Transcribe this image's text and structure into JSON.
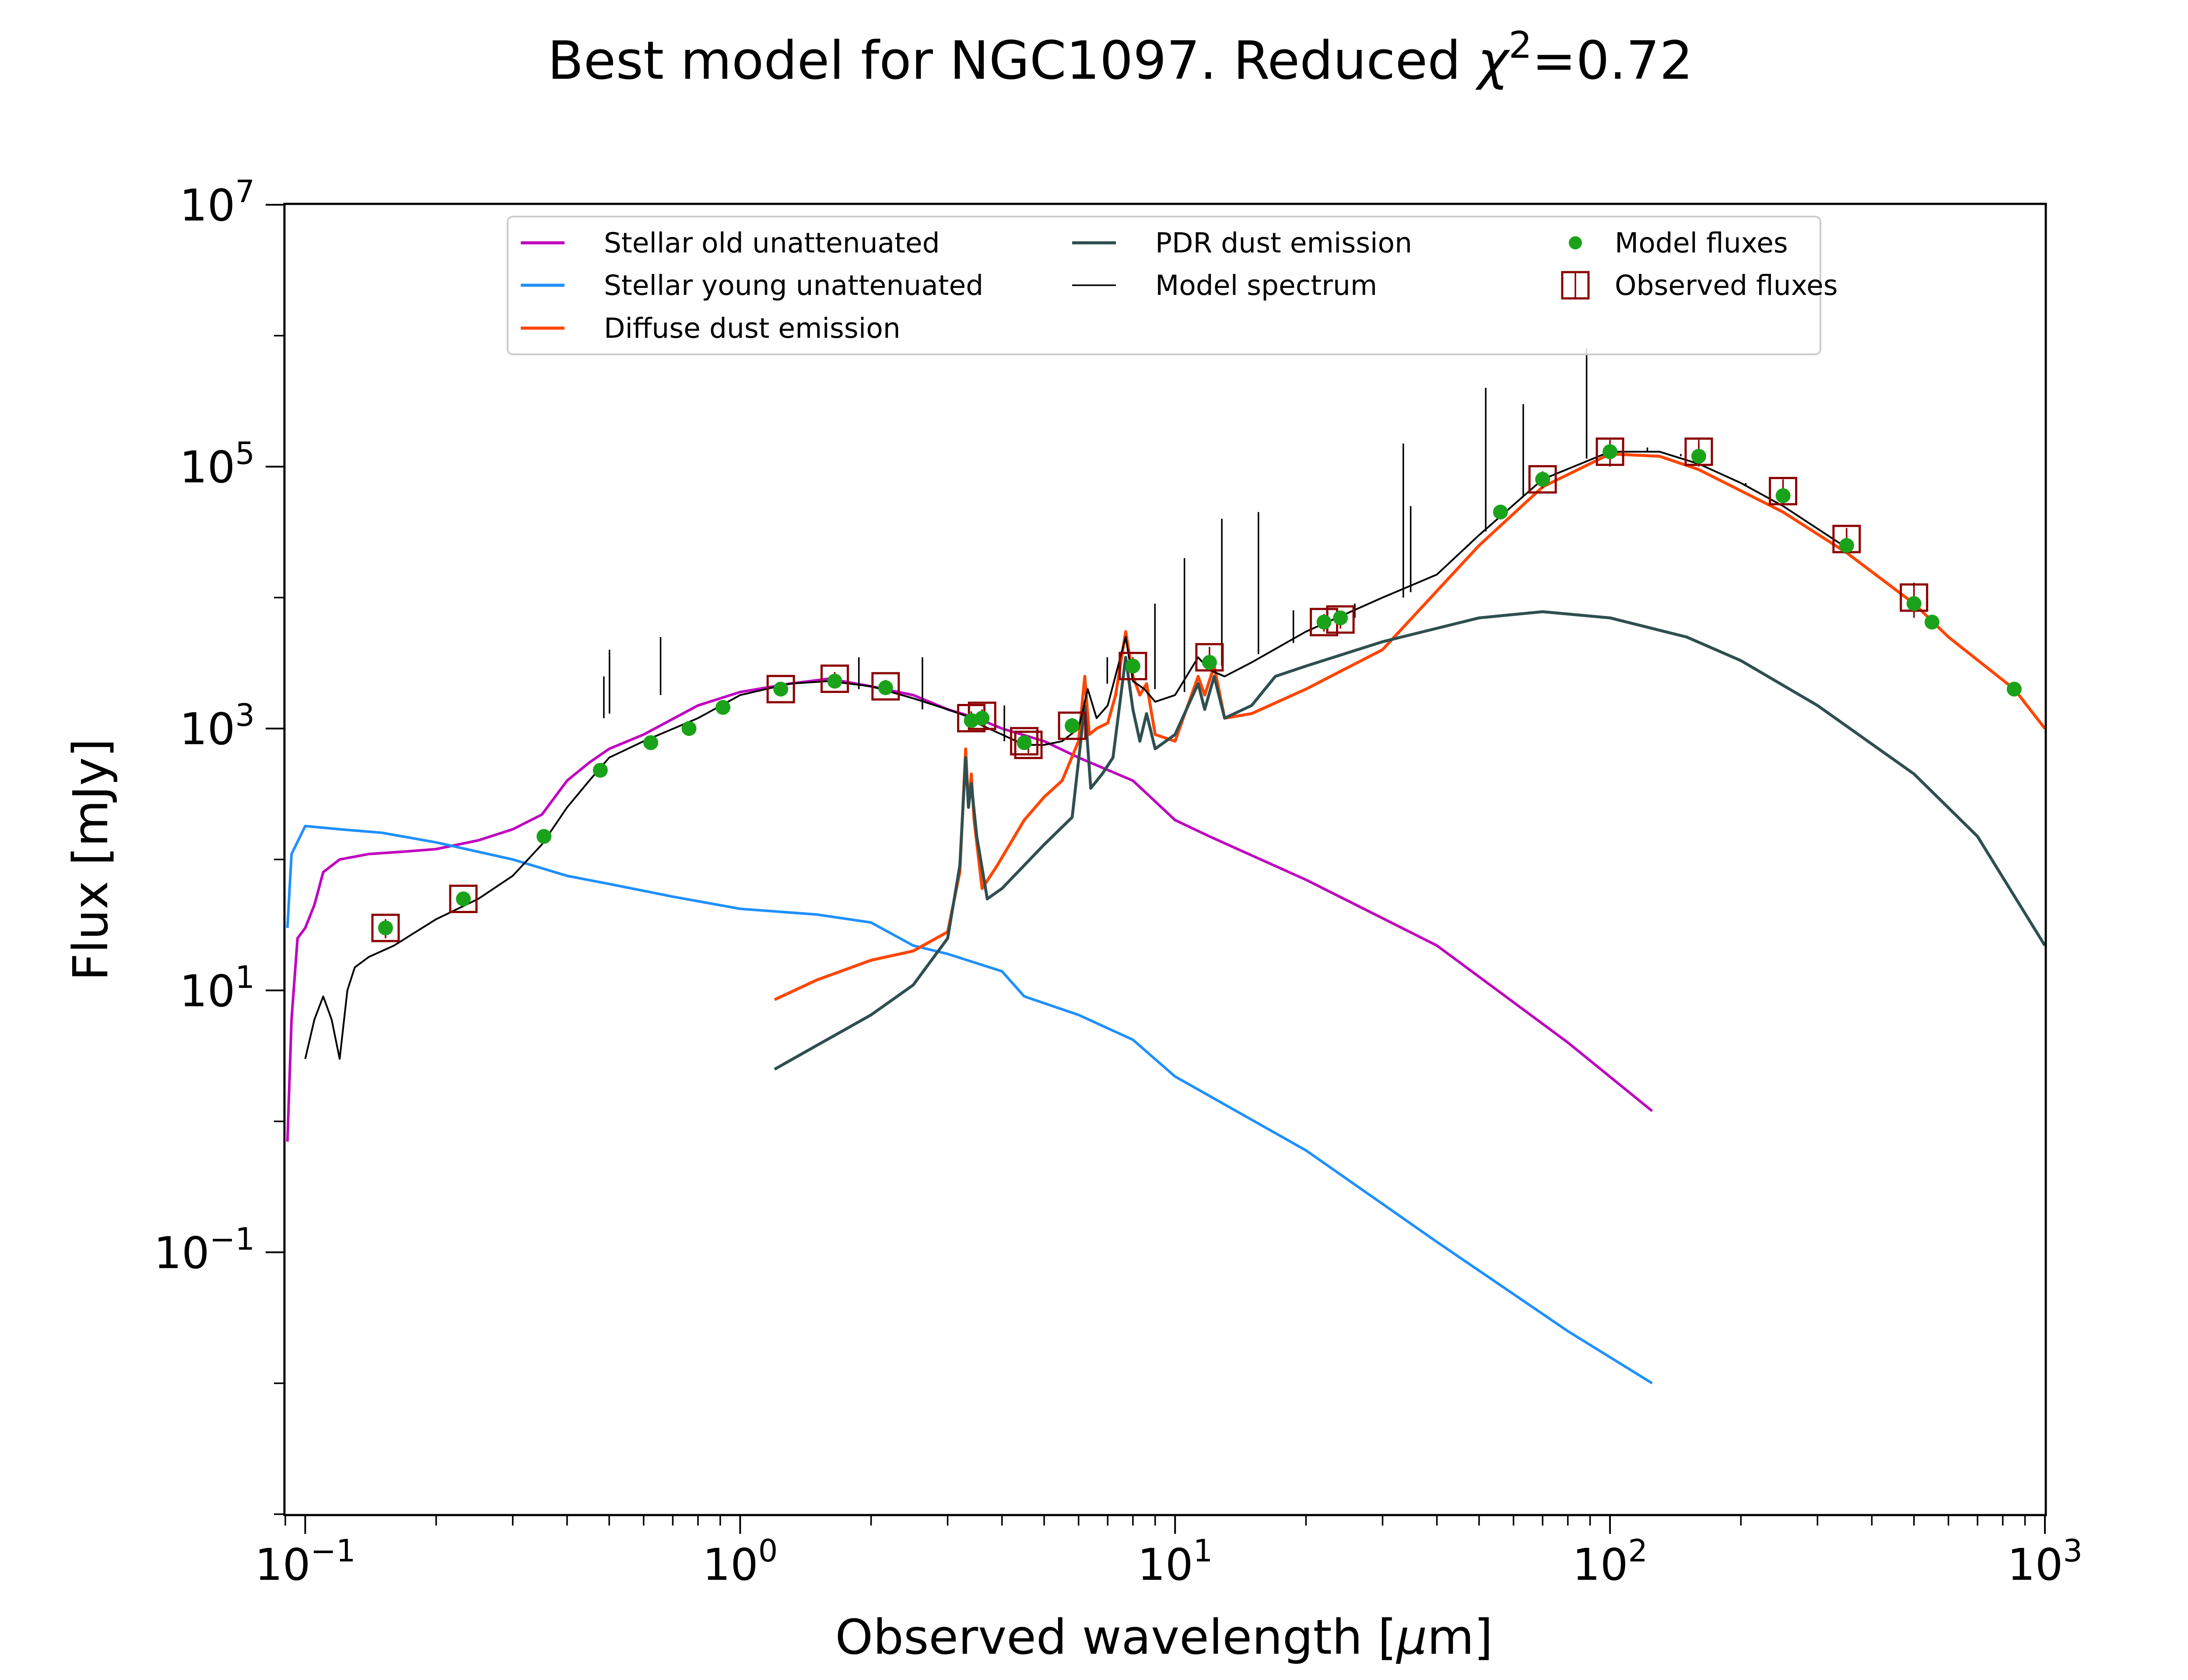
{
  "chart_data": {
    "type": "line",
    "title_prefix": "Best model for NGC1097. Reduced ",
    "title_chi": "χ",
    "title_sup": "2",
    "title_suffix": "=0.72",
    "xlabel_prefix": "Observed wavelength [",
    "xlabel_mu": "μ",
    "xlabel_suffix": "m]",
    "ylabel": "Flux [mJy]",
    "xscale": "log",
    "yscale": "log",
    "xlim": [
      0.09,
      1000
    ],
    "ylim": [
      0.001,
      10000000
    ],
    "xticks": [
      {
        "value": 0.1,
        "base": "10",
        "exp": "−1"
      },
      {
        "value": 1,
        "base": "10",
        "exp": "0"
      },
      {
        "value": 10,
        "base": "10",
        "exp": "1"
      },
      {
        "value": 100,
        "base": "10",
        "exp": "2"
      },
      {
        "value": 1000,
        "base": "10",
        "exp": "3"
      }
    ],
    "yticks": [
      {
        "value": 0.1,
        "base": "10",
        "exp": "−1"
      },
      {
        "value": 10,
        "base": "10",
        "exp": "1"
      },
      {
        "value": 1000,
        "base": "10",
        "exp": "3"
      },
      {
        "value": 100000,
        "base": "10",
        "exp": "5"
      },
      {
        "value": 10000000,
        "base": "10",
        "exp": "7"
      }
    ],
    "legend_position": "top",
    "legend": [
      {
        "name": "Stellar old unattenuated",
        "kind": "line",
        "color": "#bf00bf"
      },
      {
        "name": "Stellar young unattenuated",
        "kind": "line",
        "color": "#1e90ff"
      },
      {
        "name": "Diffuse dust emission",
        "kind": "line",
        "color": "#ff4500"
      },
      {
        "name": "PDR dust emission",
        "kind": "line",
        "color": "#2f4f4f"
      },
      {
        "name": "Model spectrum",
        "kind": "thinline",
        "color": "#000000"
      },
      {
        "name": "Model fluxes",
        "kind": "dot",
        "color": "#1aa31a"
      },
      {
        "name": "Observed fluxes",
        "kind": "square",
        "color": "#8b0000"
      }
    ],
    "series": [
      {
        "key": "stellar_old",
        "color": "#bf00bf",
        "width": 2.2,
        "points": [
          [
            0.091,
            0.7
          ],
          [
            0.093,
            6
          ],
          [
            0.096,
            25
          ],
          [
            0.1,
            30
          ],
          [
            0.105,
            45
          ],
          [
            0.11,
            80
          ],
          [
            0.12,
            100
          ],
          [
            0.14,
            110
          ],
          [
            0.17,
            115
          ],
          [
            0.2,
            120
          ],
          [
            0.25,
            140
          ],
          [
            0.3,
            170
          ],
          [
            0.35,
            220
          ],
          [
            0.4,
            400
          ],
          [
            0.45,
            550
          ],
          [
            0.5,
            700
          ],
          [
            0.6,
            900
          ],
          [
            0.8,
            1500
          ],
          [
            1.0,
            1900
          ],
          [
            1.3,
            2200
          ],
          [
            1.6,
            2400
          ],
          [
            2.0,
            2100
          ],
          [
            2.5,
            1800
          ],
          [
            3.0,
            1400
          ],
          [
            3.5,
            1200
          ],
          [
            4.0,
            1000
          ],
          [
            5.0,
            800
          ],
          [
            6.0,
            600
          ],
          [
            8.0,
            400
          ],
          [
            10.0,
            200
          ],
          [
            12.0,
            150
          ],
          [
            20.0,
            70
          ],
          [
            40.0,
            22
          ],
          [
            80.0,
            4
          ],
          [
            125.0,
            1.2
          ]
        ]
      },
      {
        "key": "stellar_young",
        "color": "#1e90ff",
        "width": 2.2,
        "points": [
          [
            0.091,
            30
          ],
          [
            0.093,
            110
          ],
          [
            0.1,
            180
          ],
          [
            0.12,
            170
          ],
          [
            0.15,
            160
          ],
          [
            0.2,
            135
          ],
          [
            0.3,
            100
          ],
          [
            0.4,
            75
          ],
          [
            0.5,
            65
          ],
          [
            0.7,
            52
          ],
          [
            1.0,
            42
          ],
          [
            1.5,
            38
          ],
          [
            2.0,
            33
          ],
          [
            2.5,
            22
          ],
          [
            3.0,
            19
          ],
          [
            4.0,
            14
          ],
          [
            4.5,
            9
          ],
          [
            6.0,
            6.5
          ],
          [
            8.0,
            4.2
          ],
          [
            10.0,
            2.2
          ],
          [
            20.0,
            0.6
          ],
          [
            40.0,
            0.12
          ],
          [
            80.0,
            0.025
          ],
          [
            125.0,
            0.01
          ]
        ]
      },
      {
        "key": "diffuse_dust",
        "color": "#ff4500",
        "width": 2.5,
        "points": [
          [
            1.2,
            8.5
          ],
          [
            1.5,
            12
          ],
          [
            2.0,
            17
          ],
          [
            2.5,
            20
          ],
          [
            3.0,
            28
          ],
          [
            3.2,
            80
          ],
          [
            3.3,
            700
          ],
          [
            3.35,
            250
          ],
          [
            3.4,
            450
          ],
          [
            3.45,
            200
          ],
          [
            3.6,
            60
          ],
          [
            3.9,
            90
          ],
          [
            4.5,
            200
          ],
          [
            5.0,
            300
          ],
          [
            5.5,
            400
          ],
          [
            6.0,
            800
          ],
          [
            6.2,
            2500
          ],
          [
            6.35,
            900
          ],
          [
            6.6,
            1000
          ],
          [
            7.0,
            1100
          ],
          [
            7.3,
            1800
          ],
          [
            7.7,
            5500
          ],
          [
            8.0,
            2500
          ],
          [
            8.3,
            1800
          ],
          [
            8.6,
            2200
          ],
          [
            9.0,
            900
          ],
          [
            10.0,
            800
          ],
          [
            11.3,
            2500
          ],
          [
            11.7,
            1800
          ],
          [
            12.3,
            3000
          ],
          [
            13.0,
            1200
          ],
          [
            15.0,
            1300
          ],
          [
            20.0,
            2000
          ],
          [
            30.0,
            4000
          ],
          [
            50.0,
            25000
          ],
          [
            70.0,
            70000
          ],
          [
            100.0,
            125000
          ],
          [
            130.0,
            120000
          ],
          [
            160.0,
            95000
          ],
          [
            250.0,
            45000
          ],
          [
            350.0,
            22000
          ],
          [
            500.0,
            9000
          ],
          [
            600.0,
            5000
          ],
          [
            850.0,
            2000
          ],
          [
            1000.0,
            1000
          ]
        ]
      },
      {
        "key": "pdr_dust",
        "color": "#2f4f4f",
        "width": 2.5,
        "points": [
          [
            1.2,
            2.5
          ],
          [
            1.5,
            3.8
          ],
          [
            2.0,
            6.5
          ],
          [
            2.5,
            11
          ],
          [
            3.0,
            25
          ],
          [
            3.2,
            90
          ],
          [
            3.3,
            600
          ],
          [
            3.35,
            250
          ],
          [
            3.4,
            380
          ],
          [
            3.5,
            150
          ],
          [
            3.7,
            50
          ],
          [
            4.0,
            60
          ],
          [
            5.0,
            130
          ],
          [
            5.8,
            210
          ],
          [
            6.2,
            1500
          ],
          [
            6.4,
            350
          ],
          [
            6.8,
            450
          ],
          [
            7.2,
            600
          ],
          [
            7.7,
            3500
          ],
          [
            8.0,
            1400
          ],
          [
            8.3,
            800
          ],
          [
            8.6,
            1300
          ],
          [
            9.0,
            700
          ],
          [
            10.0,
            900
          ],
          [
            11.3,
            2200
          ],
          [
            11.7,
            1400
          ],
          [
            12.3,
            2500
          ],
          [
            13.0,
            1200
          ],
          [
            15.0,
            1500
          ],
          [
            17.0,
            2500
          ],
          [
            20.0,
            3000
          ],
          [
            30.0,
            4600
          ],
          [
            50.0,
            7000
          ],
          [
            70.0,
            7800
          ],
          [
            100.0,
            7000
          ],
          [
            150.0,
            5000
          ],
          [
            200.0,
            3300
          ],
          [
            300.0,
            1500
          ],
          [
            500.0,
            450
          ],
          [
            700.0,
            150
          ],
          [
            1000.0,
            22
          ]
        ]
      },
      {
        "key": "model_spectrum",
        "color": "#000000",
        "width": 1.5,
        "points": [
          [
            0.1,
            3
          ],
          [
            0.105,
            6
          ],
          [
            0.11,
            9
          ],
          [
            0.115,
            6
          ],
          [
            0.12,
            3
          ],
          [
            0.125,
            10
          ],
          [
            0.13,
            15
          ],
          [
            0.14,
            18
          ],
          [
            0.16,
            22
          ],
          [
            0.2,
            35
          ],
          [
            0.25,
            50
          ],
          [
            0.3,
            75
          ],
          [
            0.35,
            130
          ],
          [
            0.4,
            250
          ],
          [
            0.45,
            400
          ],
          [
            0.5,
            600
          ],
          [
            0.6,
            800
          ],
          [
            0.8,
            1200
          ],
          [
            1.0,
            1800
          ],
          [
            1.3,
            2200
          ],
          [
            1.6,
            2300
          ],
          [
            2.0,
            2100
          ],
          [
            2.5,
            1700
          ],
          [
            3.0,
            1400
          ],
          [
            3.3,
            1250
          ],
          [
            3.5,
            1100
          ],
          [
            4.0,
            900
          ],
          [
            4.5,
            750
          ],
          [
            5.0,
            750
          ],
          [
            5.5,
            800
          ],
          [
            6.0,
            1000
          ],
          [
            6.3,
            2000
          ],
          [
            6.6,
            1200
          ],
          [
            7.0,
            1500
          ],
          [
            7.7,
            5000
          ],
          [
            8.0,
            2300
          ],
          [
            8.5,
            2000
          ],
          [
            9.0,
            1600
          ],
          [
            10.0,
            1800
          ],
          [
            11.3,
            3500
          ],
          [
            12.0,
            2800
          ],
          [
            13.0,
            2500
          ],
          [
            15.0,
            3200
          ],
          [
            20.0,
            5500
          ],
          [
            30.0,
            10000
          ],
          [
            40.0,
            15000
          ],
          [
            50.0,
            30000
          ],
          [
            70.0,
            80000
          ],
          [
            100.0,
            130000
          ],
          [
            130.0,
            130000
          ],
          [
            160.0,
            105000
          ],
          [
            200.0,
            75000
          ],
          [
            250.0,
            50000
          ],
          [
            350.0,
            24000
          ]
        ]
      }
    ],
    "emission_lines": [
      [
        0.486,
        1200,
        2500
      ],
      [
        0.5007,
        1300,
        4000
      ],
      [
        0.6563,
        1800,
        5000
      ],
      [
        1.875,
        2000,
        3500
      ],
      [
        2.625,
        1400,
        3500
      ],
      [
        4.05,
        800,
        1500
      ],
      [
        6.985,
        2200,
        3500
      ],
      [
        8.99,
        2000,
        9000
      ],
      [
        10.51,
        1900,
        20000
      ],
      [
        12.81,
        3000,
        40000
      ],
      [
        15.55,
        3700,
        45000
      ],
      [
        18.71,
        4500,
        8000
      ],
      [
        25.9,
        7000,
        9000
      ],
      [
        33.48,
        10000,
        150000
      ],
      [
        34.81,
        11000,
        50000
      ],
      [
        51.8,
        32000,
        400000
      ],
      [
        63.18,
        60000,
        300000
      ],
      [
        88.36,
        115000,
        800000
      ],
      [
        121.9,
        130000,
        140000
      ],
      [
        145.5,
        120000,
        125000
      ],
      [
        157.7,
        105000,
        130000
      ],
      [
        205.2,
        72000,
        75000
      ]
    ],
    "model_fluxes": [
      [
        0.153,
        30
      ],
      [
        0.231,
        50
      ],
      [
        0.354,
        150
      ],
      [
        0.477,
        480
      ],
      [
        0.623,
        780
      ],
      [
        0.763,
        1000
      ],
      [
        0.913,
        1450
      ],
      [
        1.24,
        2000
      ],
      [
        1.65,
        2300
      ],
      [
        2.16,
        2050
      ],
      [
        3.4,
        1150
      ],
      [
        3.6,
        1200
      ],
      [
        4.5,
        780
      ],
      [
        5.8,
        1050
      ],
      [
        8.0,
        3000
      ],
      [
        12.0,
        3200
      ],
      [
        22.0,
        6500
      ],
      [
        24.0,
        7000
      ],
      [
        56.0,
        45000
      ],
      [
        70.0,
        80000
      ],
      [
        100.0,
        130000
      ],
      [
        160.0,
        120000
      ],
      [
        250.0,
        60000
      ],
      [
        350.0,
        25000
      ],
      [
        500.0,
        9000
      ],
      [
        550.0,
        6500
      ],
      [
        850.0,
        2000
      ]
    ],
    "observed_fluxes": [
      [
        0.153,
        30,
        5
      ],
      [
        0.231,
        50,
        6
      ],
      [
        1.24,
        2000,
        200
      ],
      [
        1.65,
        2400,
        300
      ],
      [
        2.16,
        2100,
        250
      ],
      [
        3.4,
        1200,
        150
      ],
      [
        3.6,
        1250,
        150
      ],
      [
        4.5,
        800,
        100
      ],
      [
        4.6,
        750,
        100
      ],
      [
        5.8,
        1050,
        150
      ],
      [
        8.0,
        3000,
        500
      ],
      [
        12.0,
        3500,
        700
      ],
      [
        22.0,
        6500,
        1000
      ],
      [
        24.0,
        6800,
        1000
      ],
      [
        70.0,
        80000,
        12000
      ],
      [
        100.0,
        130000,
        30000
      ],
      [
        160.0,
        130000,
        30000
      ],
      [
        250.0,
        65000,
        15000
      ],
      [
        350.0,
        28000,
        6000
      ],
      [
        500.0,
        10000,
        3000
      ]
    ]
  }
}
